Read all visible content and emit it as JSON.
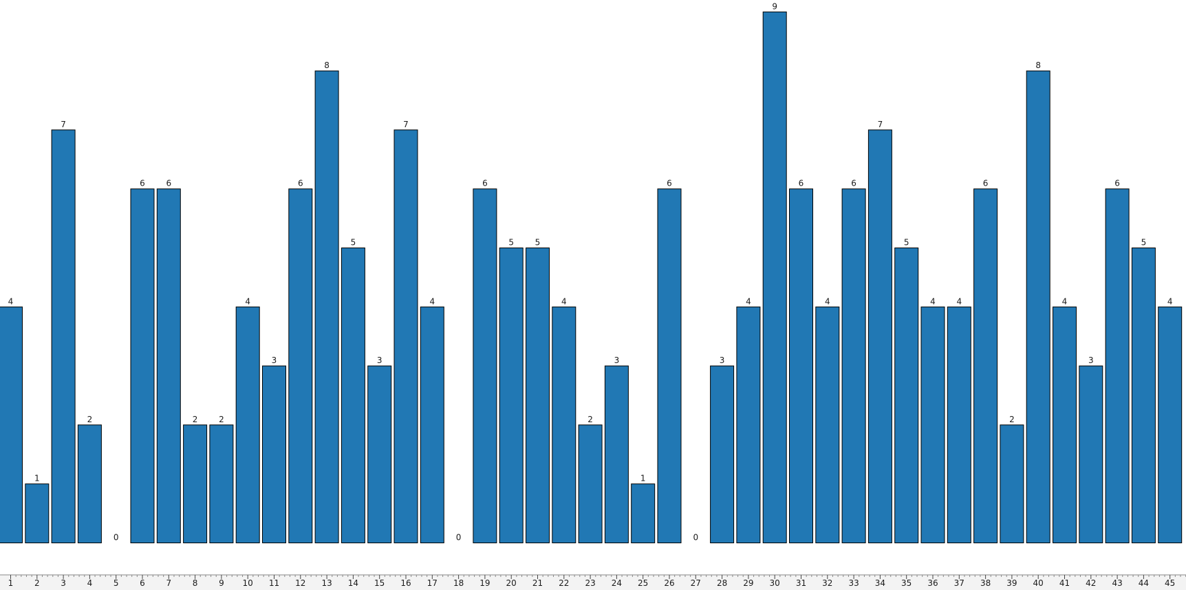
{
  "chart_data": {
    "type": "bar",
    "categories": [
      "1",
      "2",
      "3",
      "4",
      "5",
      "6",
      "7",
      "8",
      "9",
      "10",
      "11",
      "12",
      "13",
      "14",
      "15",
      "16",
      "17",
      "18",
      "19",
      "20",
      "21",
      "22",
      "23",
      "24",
      "25",
      "26",
      "27",
      "28",
      "29",
      "30",
      "31",
      "32",
      "33",
      "34",
      "35",
      "36",
      "37",
      "38",
      "39",
      "40",
      "41",
      "42",
      "43",
      "44",
      "45"
    ],
    "values": [
      4,
      1,
      7,
      2,
      0,
      6,
      6,
      2,
      2,
      4,
      3,
      6,
      8,
      5,
      3,
      7,
      4,
      0,
      6,
      5,
      5,
      4,
      2,
      3,
      1,
      6,
      0,
      3,
      4,
      9,
      6,
      4,
      6,
      7,
      5,
      4,
      4,
      6,
      2,
      8,
      4,
      3,
      6,
      5,
      4
    ],
    "ylim": [
      0,
      9
    ],
    "bar_color": "#2178b4",
    "bar_edge_color": "#000000",
    "data_labels": true,
    "grid": false,
    "legend": false
  }
}
